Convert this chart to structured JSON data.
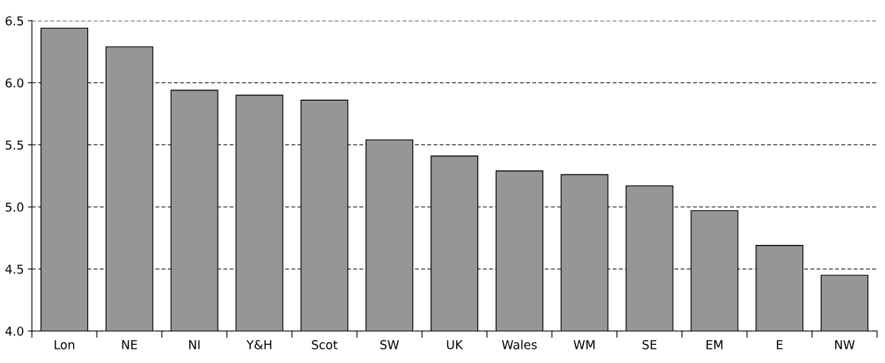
{
  "chart_data": {
    "type": "bar",
    "categories": [
      "Lon",
      "NE",
      "NI",
      "Y&H",
      "Scot",
      "SW",
      "UK",
      "Wales",
      "WM",
      "SE",
      "EM",
      "E",
      "NW"
    ],
    "values": [
      6.44,
      6.29,
      5.94,
      5.9,
      5.86,
      5.54,
      5.41,
      5.29,
      5.26,
      5.17,
      4.97,
      4.69,
      4.45
    ],
    "color": "#969696",
    "ylim": [
      4.0,
      6.5
    ],
    "yticks": [
      {
        "value": 4.0,
        "label": "4.0"
      },
      {
        "value": 4.5,
        "label": "4.5"
      },
      {
        "value": 5.0,
        "label": "5.0"
      },
      {
        "value": 5.5,
        "label": "5.5"
      },
      {
        "value": 6.0,
        "label": "6.0"
      },
      {
        "value": 6.5,
        "label": "6.5"
      }
    ],
    "grid": "y",
    "line_style": "dashed"
  }
}
